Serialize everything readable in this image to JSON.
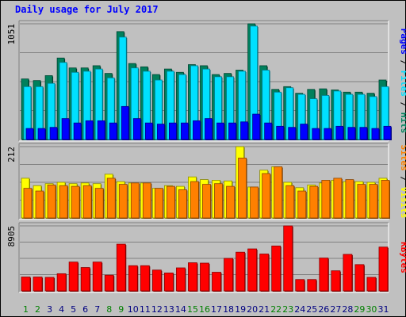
{
  "chart_data": {
    "type": "bar",
    "title": "Daily usage for July 2017",
    "categories": [
      "1",
      "2",
      "3",
      "4",
      "5",
      "6",
      "7",
      "8",
      "9",
      "10",
      "11",
      "12",
      "13",
      "14",
      "15",
      "16",
      "17",
      "18",
      "19",
      "20",
      "21",
      "22",
      "23",
      "24",
      "25",
      "26",
      "27",
      "28",
      "29",
      "30",
      "31"
    ],
    "weekend_days": [
      "1",
      "2",
      "8",
      "9",
      "15",
      "16",
      "22",
      "23",
      "29",
      "30"
    ],
    "panels": [
      {
        "id": "hits-files-pages",
        "ymax_label": "1051",
        "ylim": [
          0,
          1051
        ],
        "legend": [
          "Pages",
          "Files",
          "Hits"
        ],
        "series": [
          {
            "name": "Hits",
            "color": "#00805c",
            "values": [
              550,
              535,
              580,
              740,
              650,
              650,
              670,
              600,
              980,
              690,
              660,
              590,
              640,
              610,
              680,
              670,
              590,
              600,
              630,
              1051,
              670,
              455,
              480,
              420,
              455,
              460,
              450,
              430,
              430,
              420,
              540
            ]
          },
          {
            "name": "Files",
            "color": "#00e0ff",
            "values": [
              480,
              480,
              510,
              700,
              610,
              620,
              640,
              560,
              930,
              650,
              620,
              540,
              620,
              590,
              670,
              640,
              570,
              570,
              620,
              1030,
              630,
              430,
              470,
              410,
              370,
              400,
              440,
              410,
              410,
              390,
              480
            ]
          },
          {
            "name": "Pages",
            "color": "#0000ff",
            "values": [
              100,
              100,
              110,
              190,
              150,
              170,
              170,
              150,
              300,
              190,
              150,
              140,
              150,
              150,
              170,
              190,
              150,
              150,
              160,
              230,
              150,
              120,
              110,
              140,
              100,
              100,
              120,
              110,
              110,
              100,
              120
            ]
          }
        ]
      },
      {
        "id": "visits-sites",
        "ymax_label": "212",
        "ylim": [
          0,
          212
        ],
        "legend": [
          "Sites",
          "Visits"
        ],
        "series": [
          {
            "name": "Visits",
            "color": "#ffff00",
            "values": [
              118,
              96,
              102,
              106,
              102,
              104,
              102,
              130,
              108,
              104,
              104,
              88,
              96,
              94,
              122,
              114,
              112,
              110,
              212,
              92,
              142,
              152,
              106,
              90,
              98,
              104,
              112,
              108,
              108,
              106,
              118
            ]
          },
          {
            "name": "Sites",
            "color": "#ff8000",
            "values": [
              88,
              80,
              98,
              96,
              94,
              96,
              88,
              118,
              100,
              104,
              104,
              88,
              94,
              84,
              108,
              100,
              102,
              94,
              178,
              92,
              132,
              152,
              96,
              80,
              94,
              112,
              118,
              114,
              100,
              100,
              112
            ]
          }
        ]
      },
      {
        "id": "kbytes",
        "ymax_label": "8905",
        "ylim": [
          0,
          8905
        ],
        "legend": [
          "KBytes"
        ],
        "series": [
          {
            "name": "KBytes",
            "color": "#ff0000",
            "values": [
              1900,
              1900,
              1850,
              2350,
              3950,
              3200,
              3950,
              2150,
              6400,
              3450,
              3450,
              2850,
              2450,
              3150,
              3850,
              3800,
              2550,
              4450,
              5300,
              5750,
              5050,
              6150,
              8905,
              1550,
              1550,
              4500,
              2750,
              5000,
              3600,
              1850,
              6000
            ]
          }
        ]
      }
    ],
    "colors": {
      "panel_bg": "#c0c0c0",
      "grid": "#808080",
      "weekday_label": "#000080",
      "weekend_label": "#008000"
    }
  }
}
